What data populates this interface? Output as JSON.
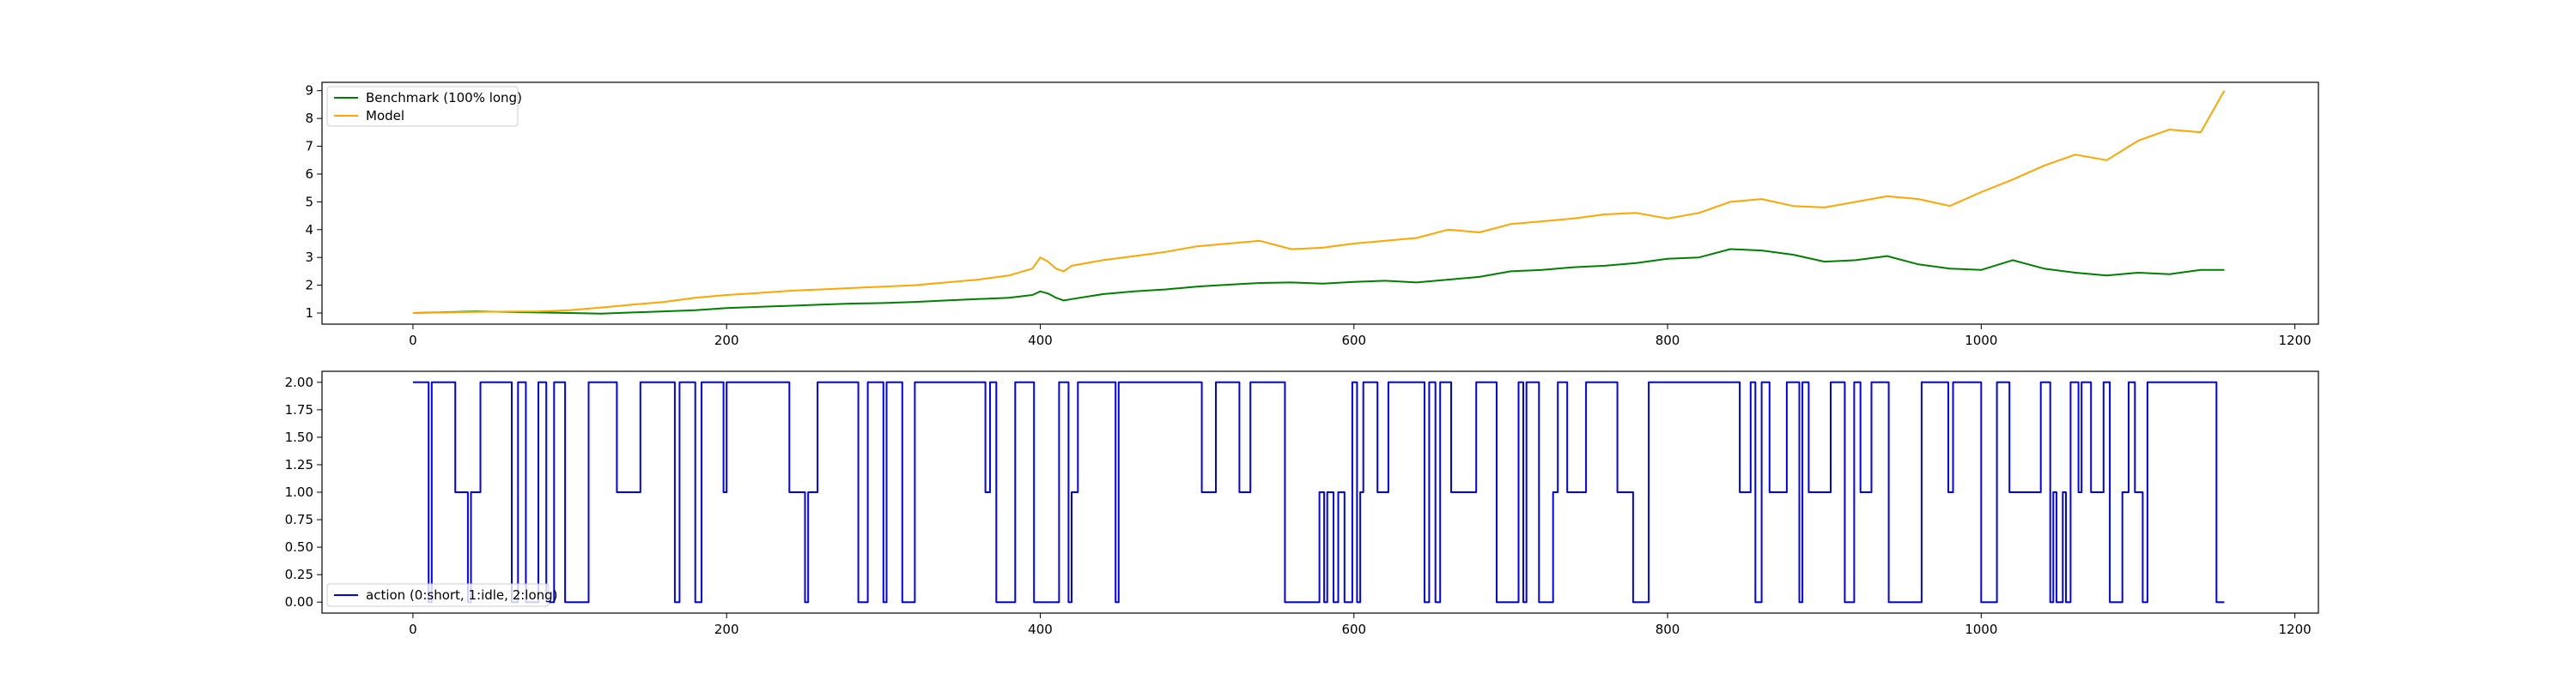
{
  "chart_data": [
    {
      "type": "line",
      "title": "",
      "xlabel": "",
      "ylabel": "",
      "xlim": [
        -58,
        1215
      ],
      "ylim": [
        0.6,
        9.3
      ],
      "xticks": [
        0,
        200,
        400,
        600,
        800,
        1000,
        1200
      ],
      "yticks": [
        1,
        2,
        3,
        4,
        5,
        6,
        7,
        8,
        9
      ],
      "grid": false,
      "legend": "top-left",
      "series": [
        {
          "name": "Benchmark (100% long)",
          "color": "#008000",
          "x": [
            0,
            20,
            40,
            60,
            80,
            100,
            120,
            140,
            160,
            180,
            200,
            220,
            240,
            260,
            280,
            300,
            320,
            340,
            360,
            380,
            395,
            400,
            405,
            410,
            415,
            420,
            440,
            460,
            480,
            500,
            520,
            540,
            560,
            580,
            600,
            620,
            640,
            660,
            680,
            700,
            720,
            740,
            760,
            780,
            800,
            820,
            840,
            860,
            880,
            900,
            920,
            940,
            960,
            980,
            1000,
            1020,
            1040,
            1060,
            1080,
            1100,
            1120,
            1140,
            1155
          ],
          "values": [
            1.0,
            1.03,
            1.06,
            1.04,
            1.02,
            1.0,
            0.98,
            1.02,
            1.06,
            1.1,
            1.18,
            1.22,
            1.26,
            1.3,
            1.34,
            1.36,
            1.4,
            1.45,
            1.5,
            1.55,
            1.65,
            1.78,
            1.7,
            1.55,
            1.45,
            1.5,
            1.68,
            1.78,
            1.85,
            1.95,
            2.02,
            2.08,
            2.1,
            2.06,
            2.12,
            2.16,
            2.1,
            2.2,
            2.3,
            2.5,
            2.55,
            2.65,
            2.7,
            2.8,
            2.95,
            3.0,
            3.3,
            3.25,
            3.1,
            2.85,
            2.9,
            3.05,
            2.75,
            2.6,
            2.55,
            2.9,
            2.6,
            2.45,
            2.35,
            2.45,
            2.4,
            2.55,
            2.55
          ]
        },
        {
          "name": "Model",
          "color": "#ffa500",
          "x": [
            0,
            20,
            40,
            60,
            80,
            100,
            120,
            140,
            160,
            180,
            200,
            220,
            240,
            260,
            280,
            300,
            320,
            340,
            360,
            380,
            395,
            400,
            405,
            410,
            415,
            420,
            440,
            460,
            480,
            500,
            520,
            540,
            560,
            580,
            600,
            620,
            640,
            660,
            680,
            700,
            720,
            740,
            760,
            780,
            800,
            820,
            840,
            860,
            880,
            900,
            920,
            940,
            960,
            980,
            1000,
            1020,
            1040,
            1060,
            1080,
            1100,
            1120,
            1140,
            1155
          ],
          "values": [
            1.0,
            1.02,
            1.04,
            1.05,
            1.06,
            1.1,
            1.2,
            1.3,
            1.4,
            1.55,
            1.65,
            1.72,
            1.8,
            1.85,
            1.9,
            1.95,
            2.0,
            2.1,
            2.2,
            2.35,
            2.6,
            3.0,
            2.85,
            2.6,
            2.5,
            2.7,
            2.9,
            3.05,
            3.2,
            3.4,
            3.5,
            3.6,
            3.3,
            3.35,
            3.5,
            3.6,
            3.7,
            4.0,
            3.9,
            4.2,
            4.3,
            4.4,
            4.55,
            4.6,
            4.4,
            4.6,
            5.0,
            5.1,
            4.85,
            4.8,
            5.0,
            5.2,
            5.1,
            4.85,
            5.35,
            5.8,
            6.3,
            6.7,
            6.5,
            7.2,
            7.6,
            7.5,
            9.0
          ]
        }
      ]
    },
    {
      "type": "line",
      "title": "",
      "xlabel": "",
      "ylabel": "",
      "xlim": [
        -58,
        1215
      ],
      "ylim": [
        -0.1,
        2.1
      ],
      "xticks": [
        0,
        200,
        400,
        600,
        800,
        1000,
        1200
      ],
      "yticks": [
        0.0,
        0.25,
        0.5,
        0.75,
        1.0,
        1.25,
        1.5,
        1.75,
        2.0
      ],
      "ytick_labels": [
        "0.00",
        "0.25",
        "0.50",
        "0.75",
        "1.00",
        "1.25",
        "1.50",
        "1.75",
        "2.00"
      ],
      "grid": false,
      "legend": "bottom-left",
      "series": [
        {
          "name": "action (0:short, 1:idle, 2:long)",
          "color": "#0000ff",
          "segments": [
            [
              0,
              2
            ],
            [
              10,
              0
            ],
            [
              12,
              2
            ],
            [
              27,
              1
            ],
            [
              35,
              0
            ],
            [
              37,
              1
            ],
            [
              43,
              2
            ],
            [
              63,
              0
            ],
            [
              67,
              2
            ],
            [
              72,
              0
            ],
            [
              80,
              2
            ],
            [
              85,
              0
            ],
            [
              90,
              2
            ],
            [
              97,
              0
            ],
            [
              112,
              2
            ],
            [
              130,
              1
            ],
            [
              145,
              2
            ],
            [
              167,
              0
            ],
            [
              170,
              2
            ],
            [
              180,
              0
            ],
            [
              184,
              2
            ],
            [
              198,
              1
            ],
            [
              200,
              2
            ],
            [
              240,
              1
            ],
            [
              250,
              0
            ],
            [
              252,
              1
            ],
            [
              258,
              2
            ],
            [
              284,
              0
            ],
            [
              290,
              2
            ],
            [
              300,
              0
            ],
            [
              302,
              2
            ],
            [
              312,
              0
            ],
            [
              320,
              2
            ],
            [
              365,
              1
            ],
            [
              368,
              2
            ],
            [
              372,
              0
            ],
            [
              384,
              2
            ],
            [
              396,
              0
            ],
            [
              412,
              2
            ],
            [
              418,
              0
            ],
            [
              420,
              1
            ],
            [
              424,
              2
            ],
            [
              448,
              0
            ],
            [
              450,
              2
            ],
            [
              503,
              1
            ],
            [
              512,
              2
            ],
            [
              527,
              1
            ],
            [
              534,
              2
            ],
            [
              556,
              0
            ],
            [
              578,
              1
            ],
            [
              581,
              0
            ],
            [
              583,
              1
            ],
            [
              587,
              0
            ],
            [
              590,
              1
            ],
            [
              594,
              0
            ],
            [
              599,
              2
            ],
            [
              602,
              0
            ],
            [
              604,
              1
            ],
            [
              606,
              2
            ],
            [
              615,
              1
            ],
            [
              622,
              2
            ],
            [
              645,
              0
            ],
            [
              648,
              2
            ],
            [
              652,
              0
            ],
            [
              655,
              2
            ],
            [
              662,
              1
            ],
            [
              678,
              2
            ],
            [
              691,
              0
            ],
            [
              705,
              2
            ],
            [
              708,
              0
            ],
            [
              710,
              2
            ],
            [
              718,
              0
            ],
            [
              727,
              1
            ],
            [
              730,
              2
            ],
            [
              736,
              1
            ],
            [
              748,
              2
            ],
            [
              768,
              1
            ],
            [
              778,
              0
            ],
            [
              788,
              2
            ],
            [
              846,
              1
            ],
            [
              853,
              2
            ],
            [
              856,
              0
            ],
            [
              860,
              2
            ],
            [
              865,
              1
            ],
            [
              876,
              2
            ],
            [
              884,
              0
            ],
            [
              886,
              2
            ],
            [
              890,
              1
            ],
            [
              904,
              2
            ],
            [
              913,
              0
            ],
            [
              919,
              2
            ],
            [
              923,
              1
            ],
            [
              930,
              2
            ],
            [
              941,
              0
            ],
            [
              962,
              2
            ],
            [
              979,
              1
            ],
            [
              982,
              2
            ],
            [
              1000,
              0
            ],
            [
              1010,
              2
            ],
            [
              1018,
              1
            ],
            [
              1038,
              2
            ],
            [
              1044,
              0
            ],
            [
              1046,
              1
            ],
            [
              1048,
              0
            ],
            [
              1052,
              1
            ],
            [
              1054,
              0
            ],
            [
              1057,
              2
            ],
            [
              1062,
              1
            ],
            [
              1064,
              2
            ],
            [
              1070,
              1
            ],
            [
              1078,
              2
            ],
            [
              1082,
              0
            ],
            [
              1090,
              1
            ],
            [
              1094,
              2
            ],
            [
              1098,
              1
            ],
            [
              1103,
              0
            ],
            [
              1106,
              2
            ],
            [
              1150,
              0
            ],
            [
              1155,
              0
            ]
          ]
        }
      ]
    }
  ]
}
